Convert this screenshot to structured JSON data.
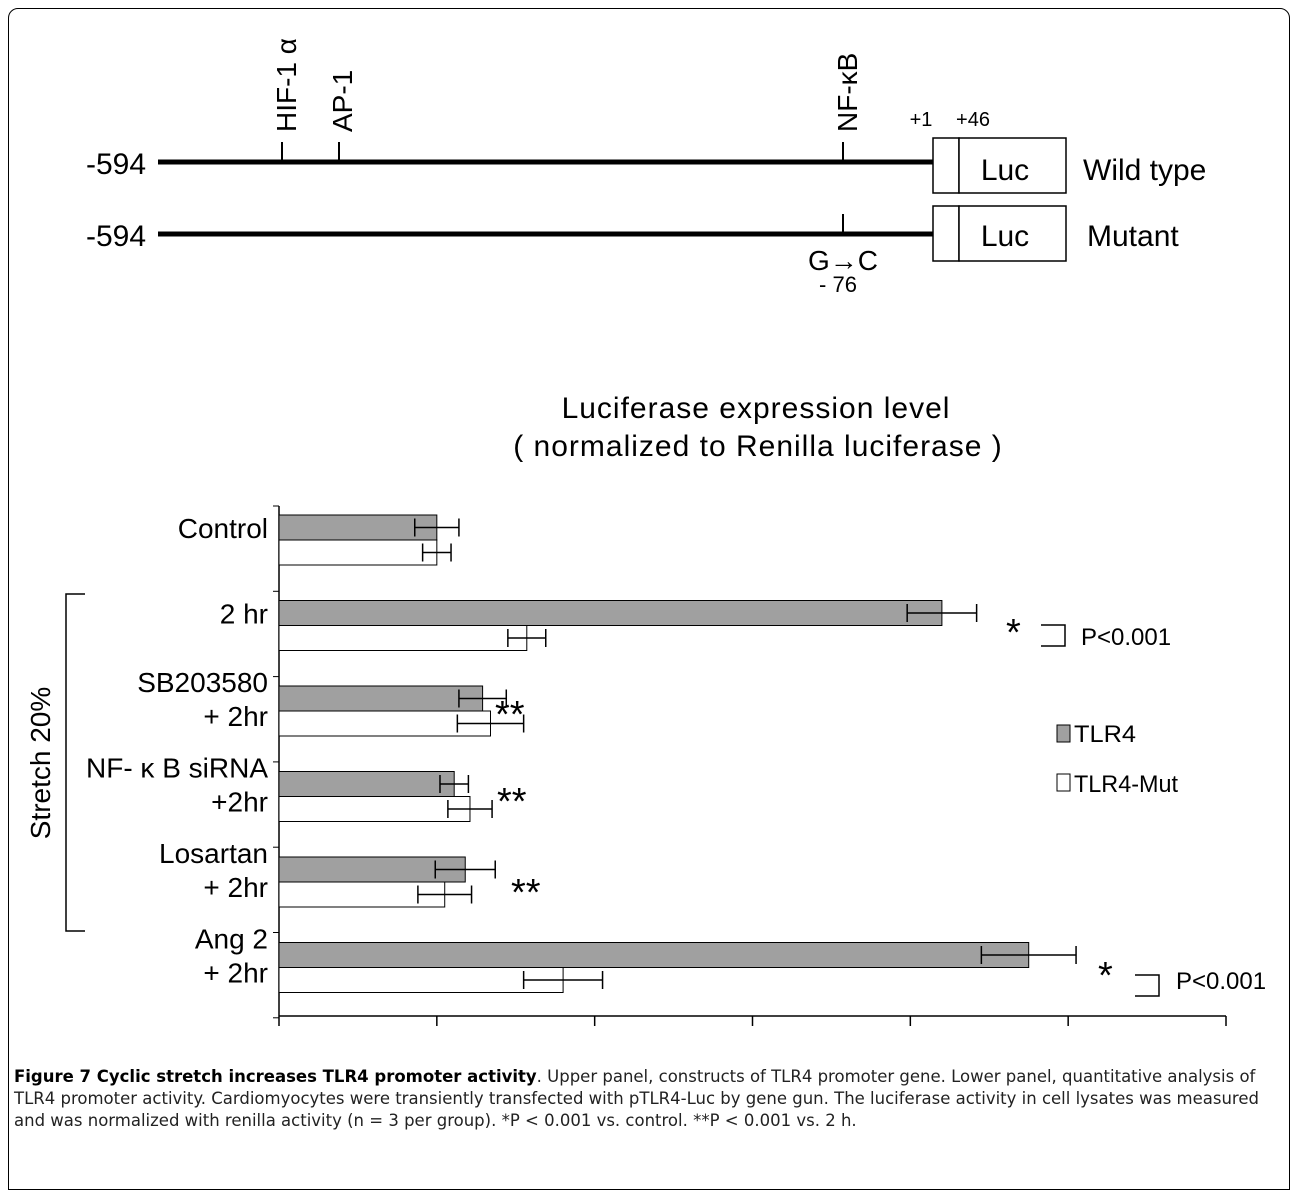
{
  "diagram": {
    "constructs": [
      {
        "left_label": "-594",
        "right_label": "Wild type",
        "box_label": "Luc"
      },
      {
        "left_label": "-594",
        "right_label": "Mutant",
        "box_label": "Luc"
      }
    ],
    "sites": [
      "HIF-1 α",
      "AP-1",
      "NF-κB"
    ],
    "positions": [
      "+1",
      "+46"
    ],
    "mutation": "G→C",
    "mutation_pos": "- 76"
  },
  "chart_data": {
    "type": "bar",
    "orientation": "horizontal",
    "title": "Luciferase expression level",
    "subtitle": "( normalized to Renilla luciferase )",
    "group_label": "Stretch 20%",
    "categories": [
      [
        "Control"
      ],
      [
        "2 hr"
      ],
      [
        "SB203580",
        "+ 2hr"
      ],
      [
        "NF- κ B siRNA",
        "+2hr"
      ],
      [
        "Losartan",
        "+ 2hr"
      ],
      [
        "Ang 2",
        "+ 2hr"
      ]
    ],
    "series": [
      {
        "name": "TLR4",
        "color": "#a0a0a0",
        "values": [
          1.0,
          4.2,
          1.29,
          1.11,
          1.18,
          4.75
        ],
        "errors": [
          0.14,
          0.22,
          0.15,
          0.09,
          0.19,
          0.3
        ]
      },
      {
        "name": "TLR4-Mut",
        "color": "#ffffff",
        "values": [
          1.0,
          1.57,
          1.34,
          1.21,
          1.05,
          1.8
        ],
        "errors": [
          0.09,
          0.12,
          0.21,
          0.14,
          0.17,
          0.25
        ]
      }
    ],
    "xlim": [
      0,
      6
    ],
    "xticks": [
      "0",
      "1",
      "2",
      "3",
      "4",
      "5",
      "6"
    ],
    "annotations": [
      "*",
      "P<0.001",
      "**",
      "**",
      "**",
      "*",
      "P<0.001"
    ],
    "legend_position": "right"
  },
  "caption": {
    "bold": "Figure 7 Cyclic stretch increases TLR4 promoter activity",
    "text": ". Upper panel, constructs of TLR4 promoter gene. Lower panel, quantitative analysis of TLR4 promoter activity. Cardiomyocytes were transiently transfected with pTLR4-Luc by gene gun. The luciferase activity in cell lysates was measured and was normalized with renilla activity (n = 3 per group). *P < 0.001 vs. control. **P < 0.001 vs. 2 h."
  }
}
